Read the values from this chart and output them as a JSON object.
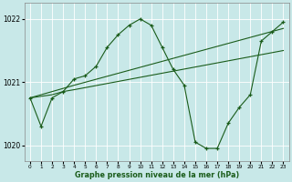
{
  "xlabel": "Graphe pression niveau de la mer (hPa)",
  "xlim": [
    -0.5,
    23.5
  ],
  "ylim": [
    1019.75,
    1022.25
  ],
  "yticks": [
    1020,
    1021,
    1022
  ],
  "xticks": [
    0,
    1,
    2,
    3,
    4,
    5,
    6,
    7,
    8,
    9,
    10,
    11,
    12,
    13,
    14,
    15,
    16,
    17,
    18,
    19,
    20,
    21,
    22,
    23
  ],
  "background_color": "#c8e8e8",
  "grid_color": "#ffffff",
  "line_color": "#1a5c1a",
  "series": [
    {
      "x": [
        0,
        1,
        2,
        3,
        4,
        5,
        6,
        7,
        8,
        9,
        10,
        11,
        12,
        13,
        14,
        15,
        16,
        17,
        18,
        19,
        20,
        21,
        22,
        23
      ],
      "y": [
        1020.75,
        1020.3,
        1020.75,
        1020.85,
        1021.05,
        1021.1,
        1021.25,
        1021.55,
        1021.75,
        1021.9,
        1022.0,
        1021.9,
        1021.55,
        1021.2,
        1020.95,
        1020.05,
        1019.95,
        1019.95,
        1020.35,
        1020.6,
        1020.8,
        1021.65,
        1021.8,
        1021.95
      ]
    },
    {
      "x": [
        0,
        2,
        3,
        4,
        23
      ],
      "y": [
        1020.75,
        1020.85,
        1020.9,
        1020.95,
        1021.85
      ]
    },
    {
      "x": [
        0,
        2,
        3,
        4,
        23
      ],
      "y": [
        1020.75,
        1020.8,
        1020.85,
        1020.88,
        1021.5
      ]
    }
  ]
}
